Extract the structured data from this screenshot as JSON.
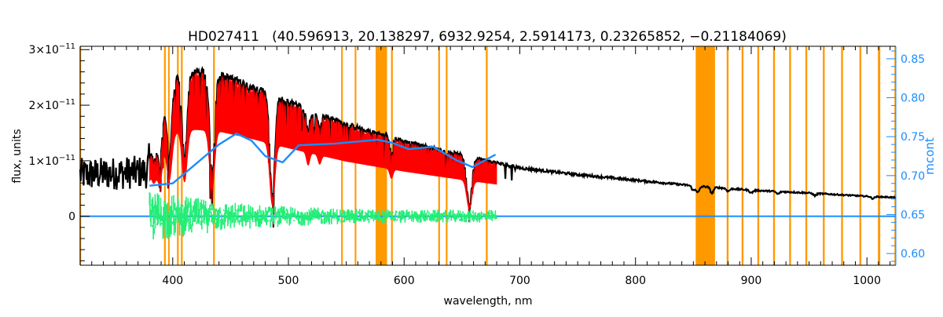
{
  "chart_data": {
    "type": "line",
    "title": "HD027411   (40.596913, 20.138297, 6932.9254, 2.5914173, 0.23265852, −0.21184069)",
    "xlabel": "wavelength, nm",
    "ylabel": "flux, units",
    "y2label": "mcont",
    "xlim": [
      320,
      1025
    ],
    "ylim": [
      -8.8e-12,
      3.06e-11
    ],
    "y2lim": [
      0.585,
      0.866
    ],
    "x_ticks": [
      400,
      500,
      600,
      700,
      800,
      900,
      1000
    ],
    "x_tick_labels": [
      "400",
      "500",
      "600",
      "700",
      "800",
      "900",
      "1000"
    ],
    "y_ticks": [
      0,
      1e-11,
      2e-11,
      3e-11
    ],
    "y_tick_labels": [
      {
        "base": "0",
        "exp": ""
      },
      {
        "base": "1×10",
        "exp": "−11"
      },
      {
        "base": "2×10",
        "exp": "−11"
      },
      {
        "base": "3×10",
        "exp": "−11"
      }
    ],
    "y2_ticks": [
      0.6,
      0.65,
      0.7,
      0.75,
      0.8,
      0.85
    ],
    "y2_tick_labels": [
      "0.60",
      "0.65",
      "0.70",
      "0.75",
      "0.80",
      "0.85"
    ],
    "flux_unit": 1e-11,
    "series": [
      {
        "name": "observed flux",
        "color": "#000000",
        "continuum_x": [
          320,
          378,
          382,
          388,
          395,
          405,
          420,
          440,
          460,
          500,
          550,
          600,
          650,
          700,
          750,
          800,
          850,
          900,
          950,
          1000,
          1025
        ],
        "continuum_y": [
          0.75,
          0.8,
          1.6,
          2.0,
          2.3,
          2.55,
          2.6,
          2.55,
          2.4,
          2.05,
          1.65,
          1.35,
          1.1,
          0.87,
          0.75,
          0.65,
          0.55,
          0.47,
          0.42,
          0.36,
          0.34
        ],
        "absorption_lines_nm": [
          383.5,
          388.9,
          397.0,
          410.2,
          434.0,
          486.1,
          517.0,
          527.0,
          589.0,
          656.3,
          850.0,
          854.0,
          866.0,
          880.0,
          900.0,
          923.0,
          955.0,
          1005.0
        ],
        "absorption_depths": [
          0.4,
          0.5,
          0.55,
          0.6,
          0.7,
          0.85,
          0.2,
          0.15,
          0.2,
          0.8,
          0.15,
          0.2,
          0.2,
          0.1,
          0.1,
          0.1,
          0.1,
          0.1
        ]
      },
      {
        "name": "model flux",
        "color": "#ff0000",
        "x_range": [
          380,
          680
        ]
      },
      {
        "name": "residuals",
        "color": "#22ee77",
        "x_range": [
          380,
          680
        ],
        "amplitude_at_start": 0.6,
        "amplitude_at_end": 0.12
      },
      {
        "name": "zero residual line",
        "color": "#1a8cff",
        "value": 0
      },
      {
        "name": "mcont",
        "axis": "right",
        "color": "#1a8cff",
        "x": [
          380,
          400,
          420,
          440,
          455,
          468,
          480,
          495,
          509,
          540,
          577,
          590,
          604,
          625,
          645,
          659,
          679
        ],
        "y": [
          0.687,
          0.69,
          0.715,
          0.74,
          0.754,
          0.745,
          0.725,
          0.717,
          0.739,
          0.741,
          0.746,
          0.742,
          0.734,
          0.737,
          0.72,
          0.711,
          0.727
        ]
      }
    ],
    "masked_bands_nm": [
      [
        319.5,
        320.8
      ],
      [
        392.5,
        394.0
      ],
      [
        396.0,
        397.3
      ],
      [
        403.7,
        405.2
      ],
      [
        407.1,
        408.6
      ],
      [
        434.9,
        436.4
      ],
      [
        545.6,
        547.0
      ],
      [
        557.3,
        558.7
      ],
      [
        575.4,
        585.2
      ],
      [
        588.7,
        590.2
      ],
      [
        629.5,
        631.0
      ],
      [
        636.0,
        637.5
      ],
      [
        670.6,
        672.2
      ],
      [
        852.0,
        868.7
      ],
      [
        878.8,
        880.4
      ],
      [
        891.7,
        893.3
      ],
      [
        905.3,
        906.9
      ],
      [
        918.9,
        920.5
      ],
      [
        932.8,
        934.4
      ],
      [
        946.8,
        948.4
      ],
      [
        961.9,
        963.5
      ],
      [
        977.7,
        979.3
      ],
      [
        993.5,
        995.1
      ],
      [
        1009.5,
        1011.5
      ],
      [
        1023.8,
        1025
      ]
    ],
    "band_color": "#ff9900"
  }
}
